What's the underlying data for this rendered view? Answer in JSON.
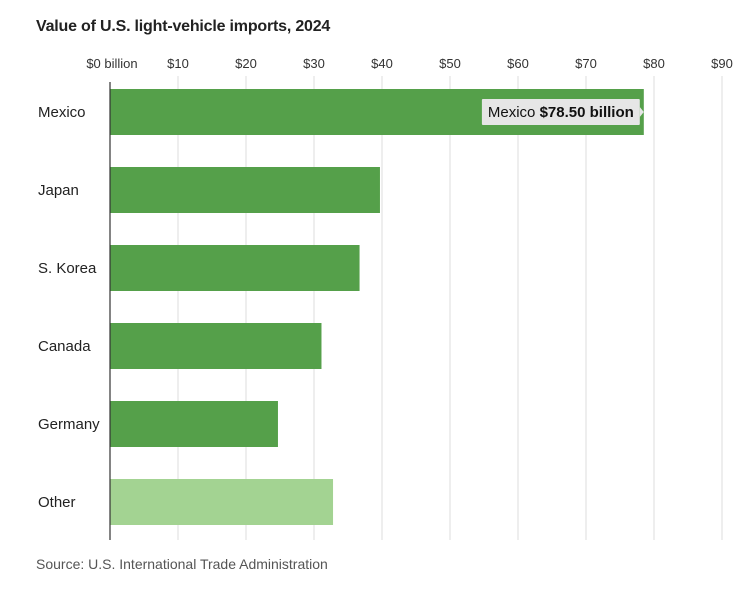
{
  "chart_data": {
    "type": "bar",
    "orientation": "horizontal",
    "title": "Value of U.S. light-vehicle imports, 2024",
    "source": "Source: U.S. International Trade Administration",
    "categories": [
      "Mexico",
      "Japan",
      "S. Korea",
      "Canada",
      "Germany",
      "Other"
    ],
    "values": [
      78.5,
      39.7,
      36.7,
      31.1,
      24.7,
      32.8
    ],
    "xlim": [
      0,
      90
    ],
    "x_ticks": [
      0,
      10,
      20,
      30,
      40,
      50,
      60,
      70,
      80,
      90
    ],
    "x_tick_labels": [
      "$0 billion",
      "$10",
      "$20",
      "$30",
      "$40",
      "$50",
      "$60",
      "$70",
      "$80",
      "$90"
    ],
    "axis_position": "top",
    "grid": true,
    "colors": {
      "bar": "#55a04a",
      "bar_highlight": "#a3d392",
      "grid": "#dddddd",
      "axis": "#333333",
      "tooltip_bg": "#e6e6e6"
    },
    "bar_colors": [
      "bar",
      "bar",
      "bar",
      "bar",
      "bar",
      "bar_highlight"
    ],
    "tooltip": {
      "category": "Mexico",
      "label": "Mexico",
      "value_text": "$78.50 billion"
    }
  }
}
